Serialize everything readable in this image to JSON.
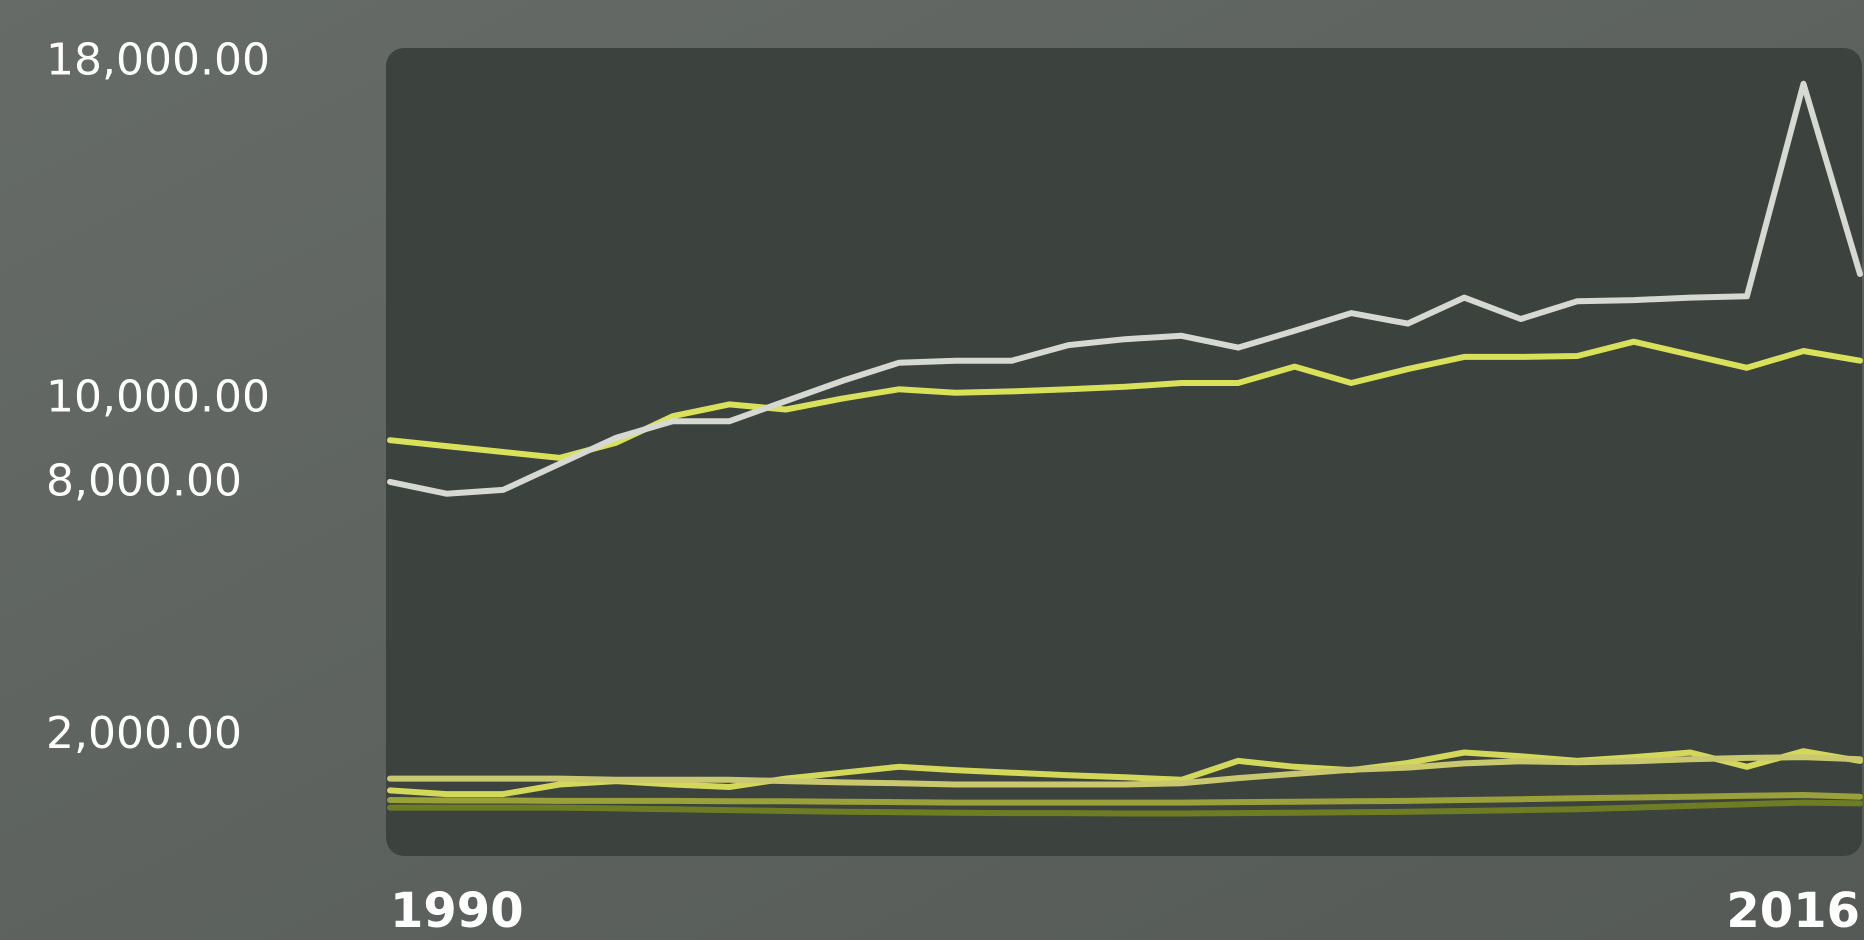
{
  "chart_data": {
    "type": "line",
    "x": [
      1990,
      1991,
      1992,
      1993,
      1994,
      1995,
      1996,
      1997,
      1998,
      1999,
      2000,
      2001,
      2002,
      2003,
      2004,
      2005,
      2006,
      2007,
      2008,
      2009,
      2010,
      2011,
      2012,
      2013,
      2014,
      2015,
      2016
    ],
    "xlim": [
      1990,
      2016
    ],
    "xticks": [
      1990,
      2016
    ],
    "ylim": [
      -850,
      18350
    ],
    "yticks": [
      {
        "value": 2000,
        "label": "2,000.00"
      },
      {
        "value": 8000,
        "label": "8,000.00"
      },
      {
        "value": 10000,
        "label": "10,000.00"
      },
      {
        "value": 18000,
        "label": "18,000.00"
      }
    ],
    "grid": false,
    "series": [
      {
        "color": "#d6d8d2",
        "values": [
          8040,
          7760,
          7850,
          8470,
          9090,
          9480,
          9480,
          9960,
          10440,
          10870,
          10920,
          10920,
          11290,
          11430,
          11510,
          11230,
          11630,
          12050,
          11800,
          12420,
          11910,
          12330,
          12360,
          12420,
          12450,
          17500,
          12980
        ]
      },
      {
        "color": "#d9e05a",
        "values": [
          9030,
          8890,
          8750,
          8610,
          8970,
          9600,
          9880,
          9760,
          10020,
          10240,
          10160,
          10190,
          10240,
          10300,
          10390,
          10390,
          10780,
          10390,
          10720,
          11010,
          11010,
          11030,
          11370,
          11060,
          10750,
          11150,
          10920
        ]
      },
      {
        "color": "#c9c86e",
        "values": [
          990,
          990,
          990,
          990,
          960,
          960,
          960,
          930,
          900,
          880,
          850,
          850,
          850,
          850,
          880,
          1000,
          1100,
          1200,
          1250,
          1350,
          1400,
          1380,
          1400,
          1450,
          1480,
          1500,
          1450
        ]
      },
      {
        "color": "#d3d85a",
        "values": [
          710,
          620,
          620,
          850,
          930,
          850,
          790,
          990,
          1130,
          1270,
          1190,
          1130,
          1070,
          1020,
          960,
          1410,
          1270,
          1190,
          1360,
          1610,
          1520,
          1410,
          1500,
          1610,
          1270,
          1640,
          1410
        ]
      },
      {
        "color": "#9aa03a",
        "values": [
          480,
          470,
          470,
          460,
          460,
          460,
          450,
          450,
          440,
          430,
          420,
          420,
          420,
          420,
          420,
          430,
          440,
          450,
          460,
          480,
          500,
          520,
          540,
          560,
          580,
          600,
          560
        ]
      },
      {
        "color": "#6e7d24",
        "values": [
          300,
          300,
          300,
          300,
          280,
          260,
          240,
          220,
          200,
          190,
          180,
          170,
          170,
          160,
          160,
          170,
          180,
          190,
          200,
          220,
          240,
          260,
          300,
          340,
          380,
          420,
          400
        ]
      }
    ]
  }
}
